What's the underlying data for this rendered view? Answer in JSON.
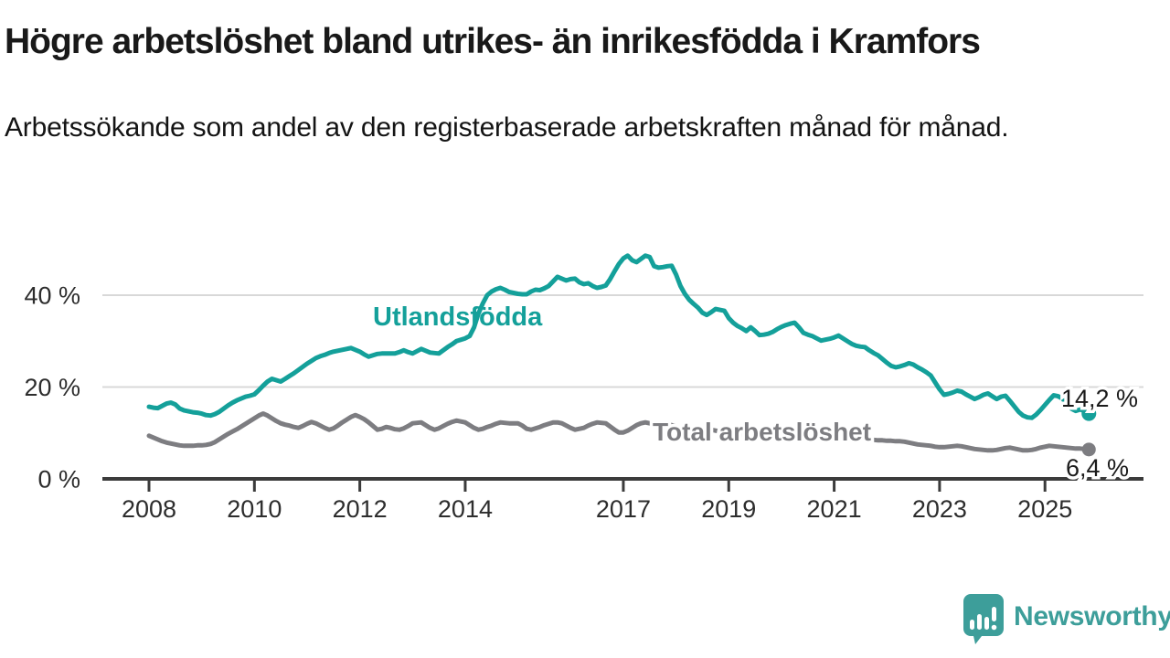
{
  "header": {
    "title": "Högre arbetslöshet bland utrikes- än inrikesfödda i Kramfors",
    "subtitle": "Arbetssökande som andel av den registerbaserade arbetskraften månad för månad."
  },
  "chart_data": {
    "type": "line",
    "unit": "%",
    "x_start_year": 2008,
    "points_per_year": 12,
    "x_axis": {
      "tick_years": [
        "2008",
        "2010",
        "2012",
        "2014",
        "2017",
        "2019",
        "2021",
        "2023",
        "2025"
      ]
    },
    "y_axis": {
      "ticks": [
        0,
        20,
        40
      ],
      "tick_labels": [
        "0 %",
        "20 %",
        "40 %"
      ],
      "range_max": 50.5
    },
    "series": [
      {
        "name": "Utlandsfödda",
        "color": "#14a09a",
        "end_label": "14,2 %",
        "end_value": 14.2,
        "values": [
          15.7,
          15.5,
          15.4,
          15.9,
          16.4,
          16.6,
          16.2,
          15.3,
          14.9,
          14.7,
          14.5,
          14.4,
          14.2,
          13.9,
          13.8,
          14.1,
          14.6,
          15.3,
          16.0,
          16.6,
          17.1,
          17.5,
          17.9,
          18.1,
          18.4,
          19.3,
          20.3,
          21.2,
          21.8,
          21.5,
          21.2,
          21.8,
          22.4,
          23.0,
          23.7,
          24.4,
          25.1,
          25.7,
          26.3,
          26.7,
          27.0,
          27.4,
          27.7,
          27.9,
          28.1,
          28.3,
          28.5,
          28.1,
          27.7,
          27.1,
          26.6,
          26.9,
          27.2,
          27.3,
          27.3,
          27.3,
          27.3,
          27.6,
          28.0,
          27.6,
          27.3,
          27.8,
          28.3,
          27.9,
          27.5,
          27.4,
          27.3,
          28.0,
          28.7,
          29.3,
          30.0,
          30.3,
          30.6,
          31.1,
          33.0,
          36.0,
          38.2,
          40.0,
          40.8,
          41.3,
          41.6,
          41.2,
          40.7,
          40.5,
          40.3,
          40.2,
          40.2,
          40.8,
          41.2,
          41.1,
          41.5,
          42.0,
          43.0,
          44.0,
          43.6,
          43.2,
          43.5,
          43.6,
          42.8,
          42.4,
          42.6,
          42.0,
          41.6,
          41.8,
          42.1,
          43.5,
          45.2,
          46.8,
          48.0,
          48.6,
          47.6,
          47.2,
          47.9,
          48.6,
          48.3,
          46.3,
          46.0,
          46.1,
          46.3,
          46.4,
          44.5,
          42.0,
          40.3,
          39.0,
          38.1,
          37.3,
          36.2,
          35.7,
          36.3,
          37.0,
          36.8,
          36.6,
          35.0,
          34.0,
          33.3,
          32.8,
          32.2,
          33.0,
          32.2,
          31.3,
          31.4,
          31.6,
          32.0,
          32.6,
          33.1,
          33.5,
          33.8,
          34.0,
          33.0,
          31.8,
          31.4,
          31.1,
          30.6,
          30.1,
          30.3,
          30.5,
          30.8,
          31.2,
          30.6,
          30.0,
          29.4,
          29.0,
          28.8,
          28.7,
          28.0,
          27.4,
          26.9,
          26.1,
          25.3,
          24.6,
          24.3,
          24.5,
          24.8,
          25.2,
          24.9,
          24.3,
          23.8,
          23.2,
          22.5,
          21.0,
          19.5,
          18.3,
          18.5,
          18.8,
          19.2,
          19.0,
          18.4,
          17.9,
          17.4,
          17.8,
          18.3,
          18.6,
          18.0,
          17.4,
          17.9,
          18.1,
          17.0,
          15.8,
          14.6,
          13.8,
          13.4,
          13.3,
          14.0,
          15.0,
          16.1,
          17.2,
          18.2,
          18.0,
          17.5,
          16.3,
          15.3,
          14.8,
          15.1,
          14.8,
          14.2
        ]
      },
      {
        "name": "Total arbetslöshet",
        "color": "#7d7d81",
        "end_label": "6,4 %",
        "end_value": 6.4,
        "values": [
          9.4,
          9.0,
          8.6,
          8.2,
          7.9,
          7.7,
          7.5,
          7.3,
          7.2,
          7.2,
          7.2,
          7.3,
          7.3,
          7.4,
          7.6,
          8.0,
          8.6,
          9.2,
          9.8,
          10.3,
          10.8,
          11.4,
          12.0,
          12.6,
          13.2,
          13.8,
          14.2,
          13.8,
          13.2,
          12.6,
          12.1,
          11.8,
          11.6,
          11.3,
          11.1,
          11.5,
          12.0,
          12.4,
          12.1,
          11.6,
          11.1,
          10.7,
          11.0,
          11.6,
          12.3,
          12.9,
          13.5,
          13.9,
          13.5,
          13.0,
          12.3,
          11.5,
          10.7,
          10.9,
          11.3,
          11.1,
          10.8,
          10.7,
          11.0,
          11.5,
          12.1,
          12.2,
          12.3,
          11.7,
          11.1,
          10.7,
          11.0,
          11.5,
          12.0,
          12.4,
          12.7,
          12.5,
          12.3,
          11.7,
          11.1,
          10.7,
          10.9,
          11.3,
          11.6,
          12.0,
          12.3,
          12.2,
          12.1,
          12.1,
          12.1,
          11.6,
          10.9,
          10.7,
          11.0,
          11.3,
          11.7,
          12.0,
          12.3,
          12.3,
          12.1,
          11.6,
          11.1,
          10.7,
          10.9,
          11.1,
          11.6,
          12.0,
          12.3,
          12.2,
          12.1,
          11.4,
          10.7,
          10.1,
          10.1,
          10.5,
          11.1,
          11.7,
          12.1,
          12.3,
          12.1,
          11.9,
          11.7,
          11.8,
          11.9,
          11.7,
          11.4,
          11.1,
          10.8,
          10.5,
          10.3,
          10.4,
          10.6,
          10.8,
          10.7,
          10.5,
          10.3,
          10.2,
          10.0,
          9.8,
          9.6,
          9.6,
          9.7,
          9.9,
          9.8,
          9.6,
          9.4,
          9.4,
          9.5,
          9.7,
          9.8,
          10.0,
          10.3,
          10.6,
          10.5,
          10.4,
          10.3,
          10.2,
          10.0,
          9.8,
          9.7,
          9.6,
          9.5,
          9.3,
          9.1,
          9.0,
          8.9,
          8.8,
          8.8,
          8.7,
          8.6,
          8.5,
          8.4,
          8.4,
          8.3,
          8.3,
          8.2,
          8.2,
          8.1,
          7.9,
          7.7,
          7.5,
          7.4,
          7.3,
          7.2,
          7.0,
          6.9,
          6.9,
          7.0,
          7.1,
          7.2,
          7.1,
          6.9,
          6.7,
          6.5,
          6.4,
          6.3,
          6.2,
          6.2,
          6.3,
          6.5,
          6.7,
          6.8,
          6.6,
          6.4,
          6.2,
          6.2,
          6.3,
          6.5,
          6.8,
          7.0,
          7.2,
          7.1,
          7.0,
          6.9,
          6.8,
          6.7,
          6.6,
          6.6,
          6.5,
          6.4
        ]
      }
    ]
  },
  "branding": {
    "name": "Newsworthy",
    "color": "#3d9e9a"
  }
}
